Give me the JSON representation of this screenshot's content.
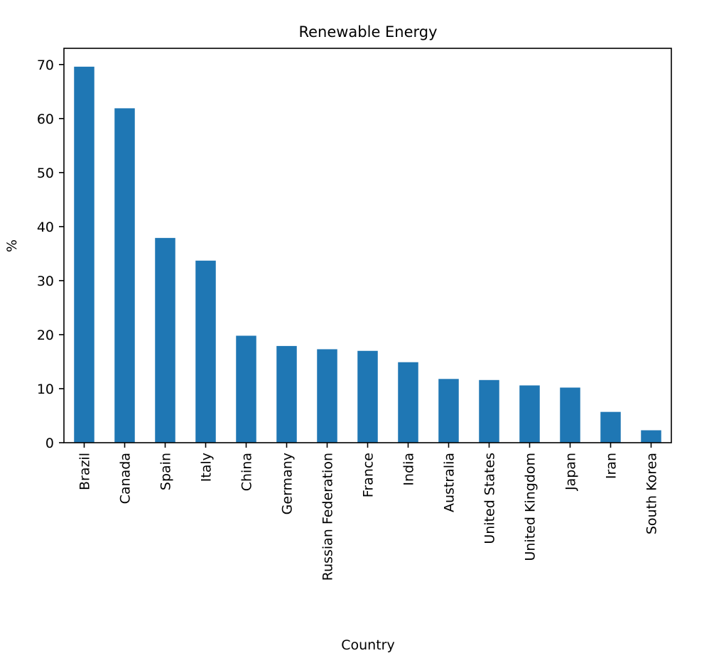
{
  "chart_data": {
    "type": "bar",
    "title": "Renewable Energy",
    "xlabel": "Country",
    "ylabel": "%",
    "ylim": [
      0,
      73
    ],
    "yticks": [
      0,
      10,
      20,
      30,
      40,
      50,
      60,
      70
    ],
    "categories": [
      "Brazil",
      "Canada",
      "Spain",
      "Italy",
      "China",
      "Germany",
      "Russian Federation",
      "France",
      "India",
      "Australia",
      "United States",
      "United Kingdom",
      "Japan",
      "Iran",
      "South Korea"
    ],
    "values": [
      69.6,
      61.9,
      37.9,
      33.7,
      19.8,
      17.9,
      17.3,
      17.0,
      14.9,
      11.8,
      11.6,
      10.6,
      10.2,
      5.7,
      2.3
    ],
    "bar_color": "#1f77b4",
    "grid": false
  }
}
